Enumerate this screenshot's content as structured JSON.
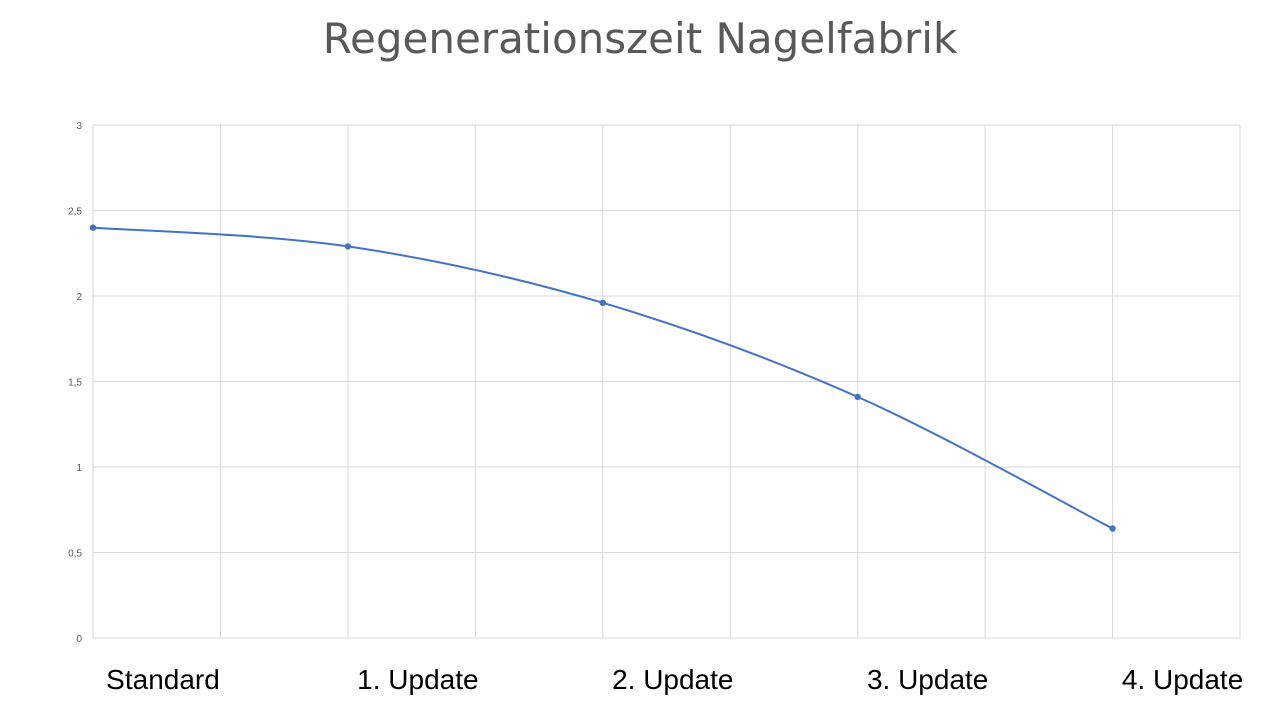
{
  "chart_data": {
    "type": "line",
    "title": "Regenerationszeit Nagelfabrik",
    "xlabel": "",
    "ylabel": "",
    "ylim": [
      0,
      3
    ],
    "yticks": [
      "0",
      "0,5",
      "1",
      "1,5",
      "2",
      "2,5",
      "3"
    ],
    "grid": true,
    "smooth": true,
    "color": "#4472c4",
    "legend": "none",
    "category_labels": [
      "Standard",
      "1. Update",
      "2. Update",
      "3. Update",
      "4. Update"
    ],
    "x": [
      0,
      2,
      4,
      6,
      8
    ],
    "values": [
      2.4,
      2.29,
      1.96,
      1.41,
      0.64
    ]
  }
}
